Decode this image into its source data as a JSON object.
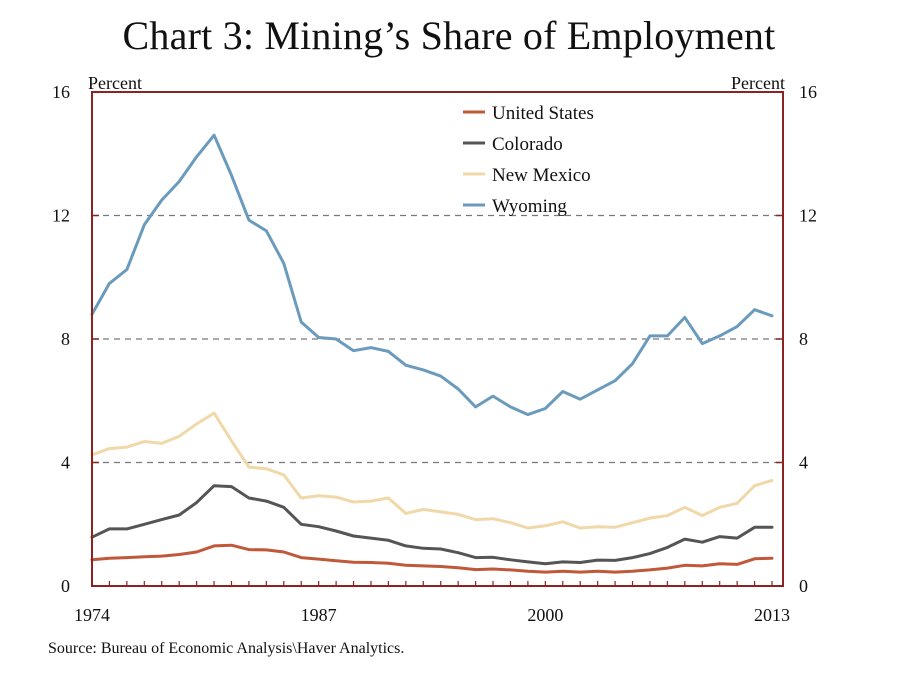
{
  "title": "Chart 3: Mining’s Share of Employment",
  "source": "Source: Bureau of Economic Analysis\\Haver Analytics.",
  "chart_data": {
    "type": "line",
    "title": "Chart 3: Mining’s Share of Employment",
    "ylabel_left": "Percent",
    "ylabel_right": "Percent",
    "xlabel": "",
    "xlim": [
      1974,
      2013
    ],
    "ylim": [
      0,
      16
    ],
    "x_tick_labels": [
      "1974",
      "1987",
      "2000",
      "2013"
    ],
    "y_tick_labels": [
      "0",
      "4",
      "8",
      "12",
      "16"
    ],
    "grid": "dashed horizontal lines at 4, 8, 12",
    "legend_position": "top-center",
    "frame_color": "#8b2323",
    "x": [
      1974,
      1975,
      1976,
      1977,
      1978,
      1979,
      1980,
      1981,
      1982,
      1983,
      1984,
      1985,
      1986,
      1987,
      1988,
      1989,
      1990,
      1991,
      1992,
      1993,
      1994,
      1995,
      1996,
      1997,
      1998,
      1999,
      2000,
      2001,
      2002,
      2003,
      2004,
      2005,
      2006,
      2007,
      2008,
      2009,
      2010,
      2011,
      2012,
      2013
    ],
    "series": [
      {
        "name": "United States",
        "color": "#c0583a",
        "values": [
          0.85,
          0.9,
          0.92,
          0.95,
          0.97,
          1.02,
          1.1,
          1.3,
          1.32,
          1.18,
          1.17,
          1.1,
          0.92,
          0.87,
          0.82,
          0.77,
          0.76,
          0.74,
          0.67,
          0.65,
          0.63,
          0.59,
          0.53,
          0.55,
          0.52,
          0.48,
          0.45,
          0.48,
          0.45,
          0.48,
          0.45,
          0.48,
          0.52,
          0.58,
          0.67,
          0.65,
          0.72,
          0.7,
          0.88,
          0.9
        ]
      },
      {
        "name": "Colorado",
        "color": "#555555",
        "values": [
          1.58,
          1.85,
          1.85,
          2.0,
          2.15,
          2.3,
          2.7,
          3.25,
          3.22,
          2.85,
          2.75,
          2.55,
          2.0,
          1.92,
          1.78,
          1.62,
          1.55,
          1.48,
          1.3,
          1.22,
          1.2,
          1.08,
          0.92,
          0.93,
          0.85,
          0.78,
          0.72,
          0.78,
          0.76,
          0.84,
          0.83,
          0.92,
          1.05,
          1.25,
          1.52,
          1.42,
          1.6,
          1.55,
          1.9,
          1.9
        ]
      },
      {
        "name": "New Mexico",
        "color": "#f0d8a8",
        "values": [
          4.25,
          4.45,
          4.5,
          4.68,
          4.62,
          4.85,
          5.25,
          5.6,
          4.7,
          3.85,
          3.8,
          3.6,
          2.85,
          2.92,
          2.88,
          2.72,
          2.75,
          2.85,
          2.35,
          2.48,
          2.4,
          2.32,
          2.15,
          2.18,
          2.05,
          1.88,
          1.95,
          2.08,
          1.88,
          1.92,
          1.9,
          2.05,
          2.2,
          2.28,
          2.55,
          2.28,
          2.55,
          2.68,
          3.25,
          3.42
        ]
      },
      {
        "name": "Wyoming",
        "color": "#6a9bbd",
        "values": [
          8.8,
          9.8,
          10.25,
          11.7,
          12.5,
          13.1,
          13.9,
          14.6,
          13.3,
          11.85,
          11.5,
          10.45,
          8.55,
          8.05,
          8.0,
          7.62,
          7.72,
          7.6,
          7.15,
          7.0,
          6.8,
          6.38,
          5.8,
          6.15,
          5.8,
          5.55,
          5.75,
          6.3,
          6.05,
          6.35,
          6.65,
          7.2,
          8.1,
          8.1,
          8.7,
          7.85,
          8.1,
          8.4,
          8.95,
          8.75
        ]
      }
    ]
  }
}
